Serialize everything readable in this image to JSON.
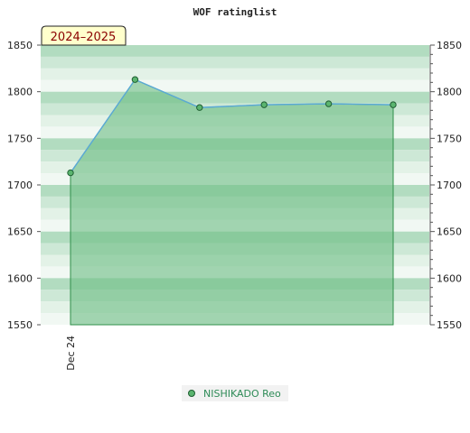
{
  "chart_data": {
    "type": "area",
    "title": "WOF ratinglist",
    "season_label": "2024–2025",
    "x_tick_labels": [
      "Dec 24"
    ],
    "x": [
      0,
      1,
      2,
      3,
      4,
      5
    ],
    "series": [
      {
        "name": "NISHIKADO Reo",
        "values": [
          1713,
          1813,
          1783,
          1786,
          1787,
          1786
        ],
        "line_color": "#5aa9d6",
        "fill_color": "#6fbf86",
        "marker_color": "#5bb56f"
      }
    ],
    "ylim": [
      1550,
      1850
    ],
    "y_ticks": [
      1550,
      1600,
      1650,
      1700,
      1750,
      1800,
      1850
    ],
    "grid": true,
    "legend_position": "bottom-center",
    "colors": {
      "band_dark": "#b2dcc0",
      "band_mid": "#cde8d6",
      "band_light": "#e3f2e7",
      "band_lightest": "#f1f8f3",
      "season_badge_bg": "#ffffcc",
      "season_badge_text": "#8b0000",
      "legend_text": "#2e8b57"
    }
  }
}
